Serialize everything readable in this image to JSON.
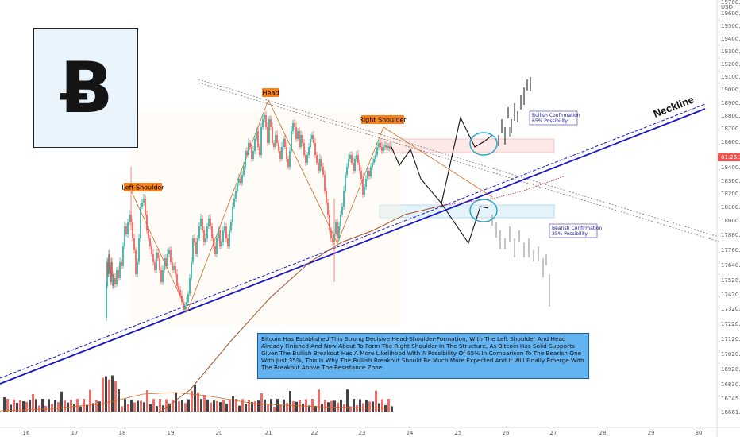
{
  "chart_data": {
    "type": "candlestick",
    "currency_label": "USD",
    "price_ticks": [
      "19700.00",
      "19600.00",
      "19500.00",
      "19400.00",
      "19300.00",
      "19200.00",
      "19100.00",
      "19000.00",
      "18900.00",
      "18800.00",
      "18700.00",
      "18600.00",
      "18500.00",
      "18400.00",
      "18300.00",
      "18200.00",
      "18100.00",
      "18000.00",
      "17880.00",
      "17760.00",
      "17640.00",
      "17520.00",
      "17420.00",
      "17320.00",
      "17220.00",
      "17120.00",
      "17020.00",
      "16920.00",
      "16830.00",
      "16745.00",
      "16661.00"
    ],
    "date_ticks": [
      "16",
      "17",
      "18",
      "19",
      "20",
      "21",
      "22",
      "23",
      "24",
      "25",
      "26",
      "27",
      "28",
      "29",
      "30"
    ],
    "current_price_label": "01:26:38",
    "annotations": {
      "left_shoulder": "Left Shoulder",
      "head": "Head",
      "right_shoulder": "Right Shoulder",
      "neckline": "Neckline",
      "bullish_line1": "Bullish Confirmation",
      "bullish_line2": "65% Possibility",
      "bearish_line1": "Bearish Confirmation",
      "bearish_line2": "35% Possibility"
    },
    "description": "Bitcoin Has Established This Strong Decisive Head-Shoulder-Formation, With The Left Shoulder And Head Already Finished And Now About To Form The Right Shoulder In The Structure, As Bitcoin Has Solid Supports Given The Bullish Breakout Has A More Likelihood With A Possibility Of 65% In Comparison To The Bearish One With Just 35%, This Is Why The Bullish Breakout Should Be Much More Expected And It Will Finally Emerge With The Breakout Above The Resistance Zone.",
    "logo_symbol": "Ƀ",
    "colors": {
      "up": "#26a69a",
      "down": "#ef5350",
      "neckline": "#1414c8",
      "ma": "#d2691e",
      "label_bg": "#f5821f",
      "desc_bg": "#63b3f0",
      "projection": "#111111",
      "projection_bar": "#888888"
    }
  }
}
